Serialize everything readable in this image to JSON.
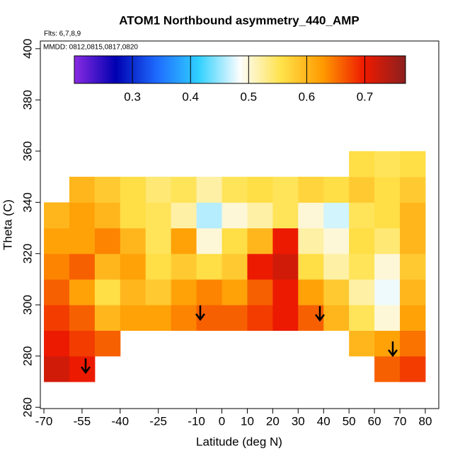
{
  "chart_data": {
    "type": "heatmap",
    "title": "ATOM1 Northbound asymmetry_440_AMP",
    "subtitle": "Flts: 6,7,8,9",
    "annotation": "MMDD: 0812,0815,0817,0820",
    "xlabel": "Latitude (deg N)",
    "ylabel": "Theta (C)",
    "xlim": [
      -71.4,
      85.3
    ],
    "ylim": [
      259.5,
      403
    ],
    "xticks": [
      -70,
      -55,
      -40,
      -25,
      -10,
      0,
      10,
      20,
      30,
      40,
      50,
      60,
      70,
      80
    ],
    "yticks": [
      260,
      280,
      300,
      320,
      340,
      360,
      380,
      400
    ],
    "x": [
      -65,
      -55,
      -45,
      -35,
      -25,
      -15,
      -5,
      5,
      15,
      25,
      35,
      45,
      55,
      65,
      75
    ],
    "y": [
      275,
      285,
      295,
      305,
      315,
      325,
      335,
      345,
      355
    ],
    "z": [
      [
        0.72,
        0.7,
        null,
        null,
        null,
        null,
        null,
        null,
        null,
        null,
        null,
        null,
        null,
        0.66,
        0.68
      ],
      [
        0.7,
        0.68,
        0.66,
        null,
        null,
        null,
        null,
        null,
        null,
        null,
        null,
        null,
        0.6,
        0.62,
        0.65
      ],
      [
        0.68,
        0.66,
        0.6,
        0.62,
        0.62,
        0.64,
        0.66,
        0.66,
        0.68,
        0.7,
        0.66,
        0.6,
        0.55,
        0.5,
        0.62
      ],
      [
        0.66,
        0.62,
        0.56,
        0.6,
        0.58,
        0.62,
        0.64,
        0.62,
        0.66,
        0.7,
        0.62,
        0.58,
        0.52,
        0.48,
        0.6
      ],
      [
        0.64,
        0.66,
        0.6,
        0.62,
        0.56,
        0.58,
        0.56,
        0.58,
        0.7,
        0.72,
        0.56,
        0.52,
        0.55,
        0.5,
        0.58
      ],
      [
        0.62,
        0.62,
        0.64,
        0.6,
        0.55,
        0.62,
        0.5,
        0.56,
        0.6,
        0.7,
        0.52,
        0.5,
        0.56,
        0.54,
        0.6
      ],
      [
        0.6,
        0.62,
        0.6,
        0.56,
        0.55,
        0.52,
        0.46,
        0.5,
        0.52,
        0.55,
        0.5,
        0.47,
        0.55,
        0.56,
        0.6
      ],
      [
        null,
        0.6,
        0.58,
        0.56,
        0.54,
        0.55,
        0.52,
        0.55,
        0.56,
        0.55,
        0.57,
        0.56,
        0.58,
        0.56,
        0.58
      ],
      [
        null,
        null,
        null,
        null,
        null,
        null,
        null,
        null,
        null,
        null,
        null,
        null,
        0.56,
        0.55,
        0.56
      ]
    ],
    "clim": [
      0.2,
      0.77
    ],
    "colorbar_ticks": [
      0.3,
      0.4,
      0.5,
      0.6,
      0.7
    ],
    "colormap": [
      "#8a2be2",
      "#0000b0",
      "#1e6cff",
      "#30d0ff",
      "#fdfdfd",
      "#ffe24a",
      "#ff9a00",
      "#ee1a00",
      "#8b1f1f"
    ]
  }
}
